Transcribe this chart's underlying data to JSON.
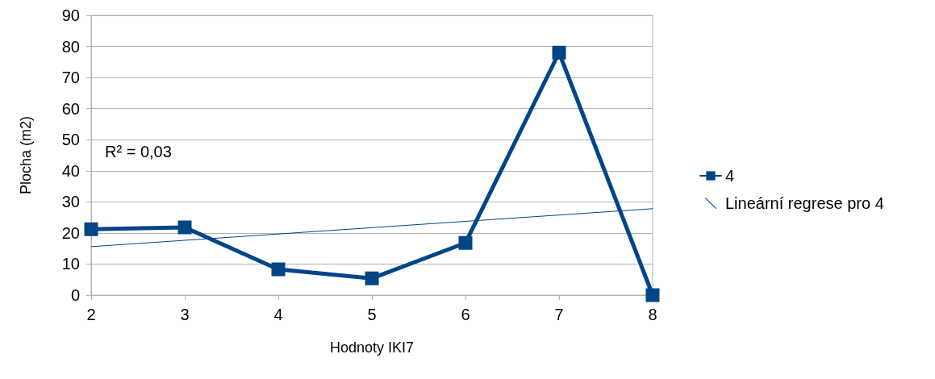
{
  "chart_data": {
    "type": "line",
    "xlabel": "Hodnoty IKI7",
    "ylabel": "Plocha (m2)",
    "x": [
      2,
      3,
      4,
      5,
      6,
      7,
      8
    ],
    "series": [
      {
        "name": "4",
        "color": "#004586",
        "values": [
          21.2,
          21.8,
          8.3,
          5.4,
          16.8,
          78,
          0
        ],
        "marker": "square"
      },
      {
        "name": "Lineární regrese pro 4",
        "type": "line",
        "color": "#004586",
        "x": [
          2,
          8
        ],
        "values": [
          15.6,
          27.8
        ],
        "marker": "none"
      }
    ],
    "xlim": [
      2,
      8
    ],
    "xticks": [
      2,
      3,
      4,
      5,
      6,
      7,
      8
    ],
    "ylim": [
      0,
      90
    ],
    "yticks": [
      0,
      10,
      20,
      30,
      40,
      50,
      60,
      70,
      80,
      90
    ],
    "grid": "y",
    "legend": "right",
    "line_style": "solid",
    "annotations": [
      "R² = 0,03"
    ]
  }
}
